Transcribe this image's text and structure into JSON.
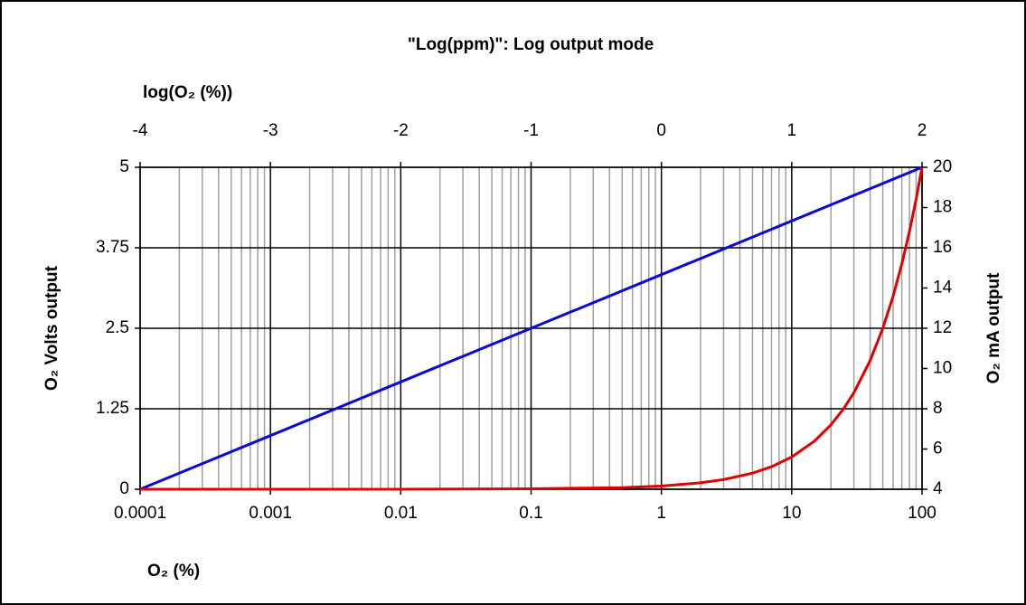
{
  "chart_data": {
    "type": "line",
    "title": "\"Log(ppm)\": Log output mode",
    "xlabel": "O₂ (%)",
    "x2label": "log(O₂ (%))",
    "ylabel": "O₂ Volts output",
    "y2label": "O₂ mA output",
    "xscale": "log",
    "xlim": [
      0.0001,
      100
    ],
    "xticks": [
      0.0001,
      0.001,
      0.01,
      0.1,
      1,
      10,
      100
    ],
    "xminorticks": [
      0.0002,
      0.0003,
      0.0004,
      0.0005,
      0.0006,
      0.0007,
      0.0008,
      0.0009,
      0.002,
      0.003,
      0.004,
      0.005,
      0.006,
      0.007,
      0.008,
      0.009,
      0.02,
      0.03,
      0.04,
      0.05,
      0.06,
      0.07,
      0.08,
      0.09,
      0.2,
      0.3,
      0.4,
      0.5,
      0.6,
      0.7,
      0.8,
      0.9,
      2,
      3,
      4,
      5,
      6,
      7,
      8,
      9,
      20,
      30,
      40,
      50,
      60,
      70,
      80,
      90
    ],
    "x2lim": [
      -4,
      2
    ],
    "x2ticks": [
      -4,
      -3,
      -2,
      -1,
      0,
      1,
      2
    ],
    "ylim": [
      0,
      5
    ],
    "yticks": [
      0,
      1.25,
      2.5,
      3.75,
      5
    ],
    "y2lim": [
      4,
      20
    ],
    "y2ticks": [
      4,
      6,
      8,
      10,
      12,
      14,
      16,
      18,
      20
    ],
    "grid": true,
    "series": [
      {
        "color": "#0a0ad2",
        "x": [
          0.0001,
          0.001,
          0.01,
          0.1,
          1,
          10,
          100
        ],
        "values": [
          0,
          0.833,
          1.667,
          2.5,
          3.333,
          4.167,
          5
        ]
      },
      {
        "color": "#e00000",
        "axis": "y2",
        "x": [
          0.0001,
          0.001,
          0.01,
          0.1,
          0.5,
          1,
          2,
          3,
          5,
          7,
          10,
          15,
          20,
          25,
          30,
          40,
          50,
          60,
          70,
          80,
          90,
          100
        ],
        "values": [
          4,
          4,
          4,
          4.02,
          4.08,
          4.16,
          4.32,
          4.48,
          4.8,
          5.12,
          5.6,
          6.4,
          7.2,
          8,
          8.8,
          10.4,
          12,
          13.6,
          15.2,
          16.8,
          18.4,
          20
        ]
      }
    ]
  }
}
